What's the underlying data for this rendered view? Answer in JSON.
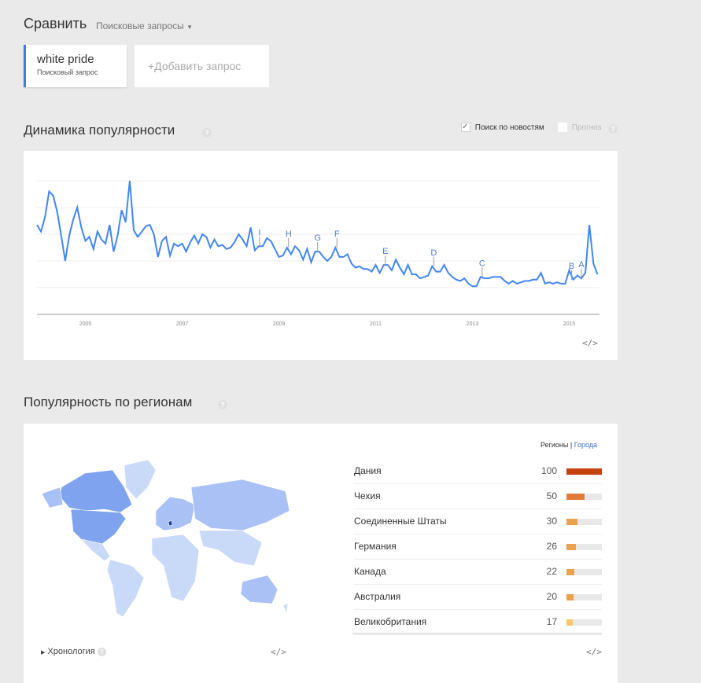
{
  "header": {
    "title": "Сравнить",
    "dropdown": "Поисковые запросы"
  },
  "terms": [
    {
      "label": "white pride",
      "sublabel": "Поисковый запрос",
      "color": "#4a7bd0"
    }
  ],
  "add_term": "+Добавить запрос",
  "trend": {
    "title": "Динамика популярности",
    "help": "?",
    "news_checkbox": {
      "label": "Поиск по новостям",
      "checked": true
    },
    "forecast_checkbox": {
      "label": "Прогноз",
      "checked": false
    },
    "embed": "</>"
  },
  "chart_data": {
    "type": "line",
    "x_start": "2004-01",
    "x_step": "month",
    "xticks": [
      "2005",
      "2007",
      "2009",
      "2011",
      "2013",
      "2015"
    ],
    "ylim": [
      0,
      100
    ],
    "grid": true,
    "color": "#4285f4",
    "series": [
      {
        "values": [
          67,
          62,
          73,
          92,
          89,
          77,
          59,
          40,
          59,
          71,
          80,
          65,
          55,
          58,
          49,
          62,
          56,
          53,
          67,
          47,
          59,
          78,
          69,
          100,
          63,
          58,
          62,
          66,
          67,
          60,
          43,
          55,
          58,
          44,
          53,
          51,
          53,
          47,
          54,
          59,
          53,
          60,
          58,
          50,
          56,
          51,
          52,
          49,
          50,
          54,
          60,
          56,
          51,
          65,
          48,
          51,
          51,
          57,
          55,
          49,
          43,
          44,
          50,
          45,
          51,
          48,
          41,
          49,
          39,
          47,
          47,
          43,
          40,
          43,
          50,
          43,
          43,
          45,
          38,
          35,
          36,
          34,
          34,
          32,
          37,
          31,
          37,
          37,
          33,
          41,
          35,
          30,
          37,
          30,
          30,
          27,
          28,
          29,
          36,
          32,
          32,
          37,
          31,
          28,
          26,
          25,
          27,
          23,
          21,
          21,
          28,
          27,
          27,
          28,
          28,
          28,
          25,
          23,
          25,
          23,
          24,
          25,
          25,
          26,
          26,
          31,
          23,
          24,
          23,
          24,
          23,
          23,
          33,
          26,
          29,
          27,
          31,
          67,
          38,
          30
        ]
      }
    ],
    "annotations": [
      {
        "label": "I",
        "date": "2008.6"
      },
      {
        "label": "H",
        "date": "2009.2"
      },
      {
        "label": "G",
        "date": "2009.8"
      },
      {
        "label": "F",
        "date": "2010.2"
      },
      {
        "label": "E",
        "date": "2011.2"
      },
      {
        "label": "D",
        "date": "2012.2"
      },
      {
        "label": "C",
        "date": "2013.2"
      },
      {
        "label": "B",
        "date": "2015.05"
      },
      {
        "label": "A",
        "date": "2015.25"
      }
    ]
  },
  "regions": {
    "title": "Популярность по регионам",
    "help": "?",
    "toggle_regions": "Регионы",
    "toggle_cities": "Города",
    "rows": [
      {
        "name": "Дания",
        "value": 100,
        "color": "#c4420e"
      },
      {
        "name": "Чехия",
        "value": 50,
        "color": "#e07b39"
      },
      {
        "name": "Соединенные Штаты",
        "value": 30,
        "color": "#eba24f"
      },
      {
        "name": "Германия",
        "value": 26,
        "color": "#eba24f"
      },
      {
        "name": "Канада",
        "value": 22,
        "color": "#eba24f"
      },
      {
        "name": "Австралия",
        "value": 20,
        "color": "#eba24f"
      },
      {
        "name": "Великобритания",
        "value": 17,
        "color": "#f6c766"
      }
    ],
    "timeline": "Хронология",
    "embed": "</>"
  }
}
